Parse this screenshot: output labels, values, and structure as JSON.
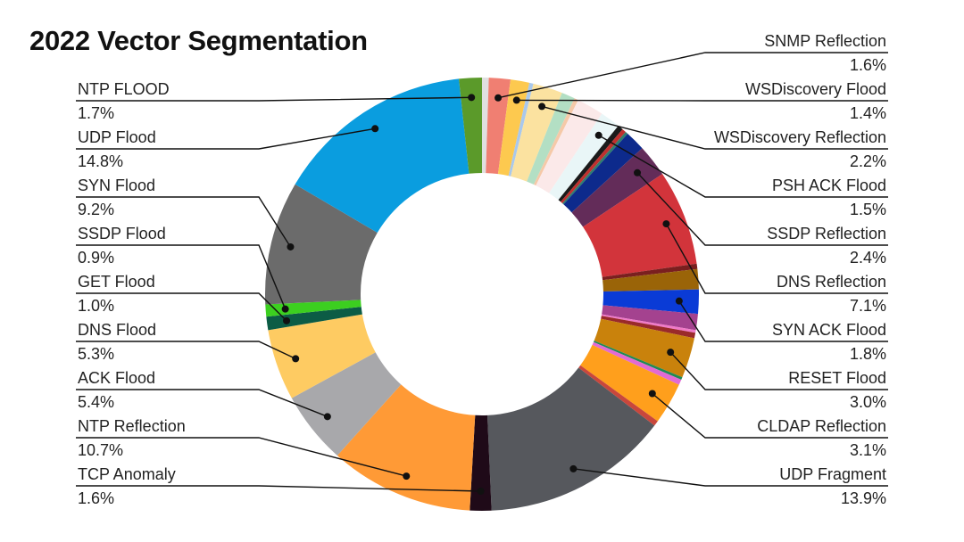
{
  "chart_data": {
    "type": "pie",
    "style": "donut",
    "title": "2022 Vector Segmentation",
    "unit": "%",
    "slices": [
      {
        "name": "",
        "value": 0.5,
        "color": "#e0e0e0"
      },
      {
        "name": "SNMP Reflection",
        "label": "1.6%",
        "value": 1.6,
        "color": "#f07f72"
      },
      {
        "name": "WSDiscovery Flood",
        "label": "1.4%",
        "value": 1.4,
        "color": "#fdc94f"
      },
      {
        "name": "",
        "value": 0.3,
        "color": "#a9c8ec"
      },
      {
        "name": "WSDiscovery Reflection",
        "label": "2.2%",
        "value": 2.2,
        "color": "#fbe2a0"
      },
      {
        "name": "",
        "value": 1.0,
        "color": "#b3dfc4"
      },
      {
        "name": "",
        "value": 0.3,
        "color": "#f5c9a8"
      },
      {
        "name": "",
        "value": 2.0,
        "color": "#fbe9e9"
      },
      {
        "name": "PSH ACK Flood",
        "label": "1.5%",
        "value": 1.5,
        "color": "#e9f6f7"
      },
      {
        "name": "",
        "value": 0.4,
        "color": "#1a1a1a"
      },
      {
        "name": "",
        "value": 0.3,
        "color": "#c0302e"
      },
      {
        "name": "",
        "value": 0.2,
        "color": "#2e7d6e"
      },
      {
        "name": "",
        "value": 1.5,
        "color": "#0d2a8c"
      },
      {
        "name": "SSDP Reflection",
        "label": "2.4%",
        "value": 2.4,
        "color": "#632c59"
      },
      {
        "name": "DNS Reflection",
        "label": "7.1%",
        "value": 7.1,
        "color": "#d2343b"
      },
      {
        "name": "",
        "value": 0.4,
        "color": "#7a1f1f"
      },
      {
        "name": "",
        "value": 1.5,
        "color": "#9a6408"
      },
      {
        "name": "SYN ACK Flood",
        "label": "1.8%",
        "value": 1.8,
        "color": "#0a3bd6"
      },
      {
        "name": "",
        "value": 1.2,
        "color": "#a4428f"
      },
      {
        "name": "",
        "value": 0.2,
        "color": "#f07ac8"
      },
      {
        "name": "",
        "value": 0.4,
        "color": "#9a2a2a"
      },
      {
        "name": "RESET Flood",
        "label": "3.0%",
        "value": 3.0,
        "color": "#c9820c"
      },
      {
        "name": "",
        "value": 0.2,
        "color": "#1f8a55"
      },
      {
        "name": "",
        "value": 0.4,
        "color": "#e26ad4"
      },
      {
        "name": "CLDAP Reflection",
        "label": "3.1%",
        "value": 3.1,
        "color": "#ff9f1c"
      },
      {
        "name": "",
        "value": 0.4,
        "color": "#c9473c"
      },
      {
        "name": "UDP Fragment",
        "label": "13.9%",
        "value": 13.9,
        "color": "#56585d"
      },
      {
        "name": "TCP Anomaly",
        "label": "1.6%",
        "value": 1.6,
        "color": "#1f0a18"
      },
      {
        "name": "NTP Reflection",
        "label": "10.7%",
        "value": 10.7,
        "color": "#ff9a36"
      },
      {
        "name": "ACK Flood",
        "label": "5.4%",
        "value": 5.4,
        "color": "#a8a8ab"
      },
      {
        "name": "DNS Flood",
        "label": "5.3%",
        "value": 5.3,
        "color": "#fecb62"
      },
      {
        "name": "GET Flood",
        "label": "1.0%",
        "value": 1.0,
        "color": "#0c5c45"
      },
      {
        "name": "SSDP Flood",
        "label": "0.9%",
        "value": 0.9,
        "color": "#3ccf20"
      },
      {
        "name": "SYN Flood",
        "label": "9.2%",
        "value": 9.2,
        "color": "#6b6b6b"
      },
      {
        "name": "UDP Flood",
        "label": "14.8%",
        "value": 14.8,
        "color": "#0a9ddf"
      },
      {
        "name": "NTP FLOOD",
        "label": "1.7%",
        "value": 1.7,
        "color": "#5b9a2a"
      }
    ],
    "legend": "leader-line labels on both sides"
  }
}
